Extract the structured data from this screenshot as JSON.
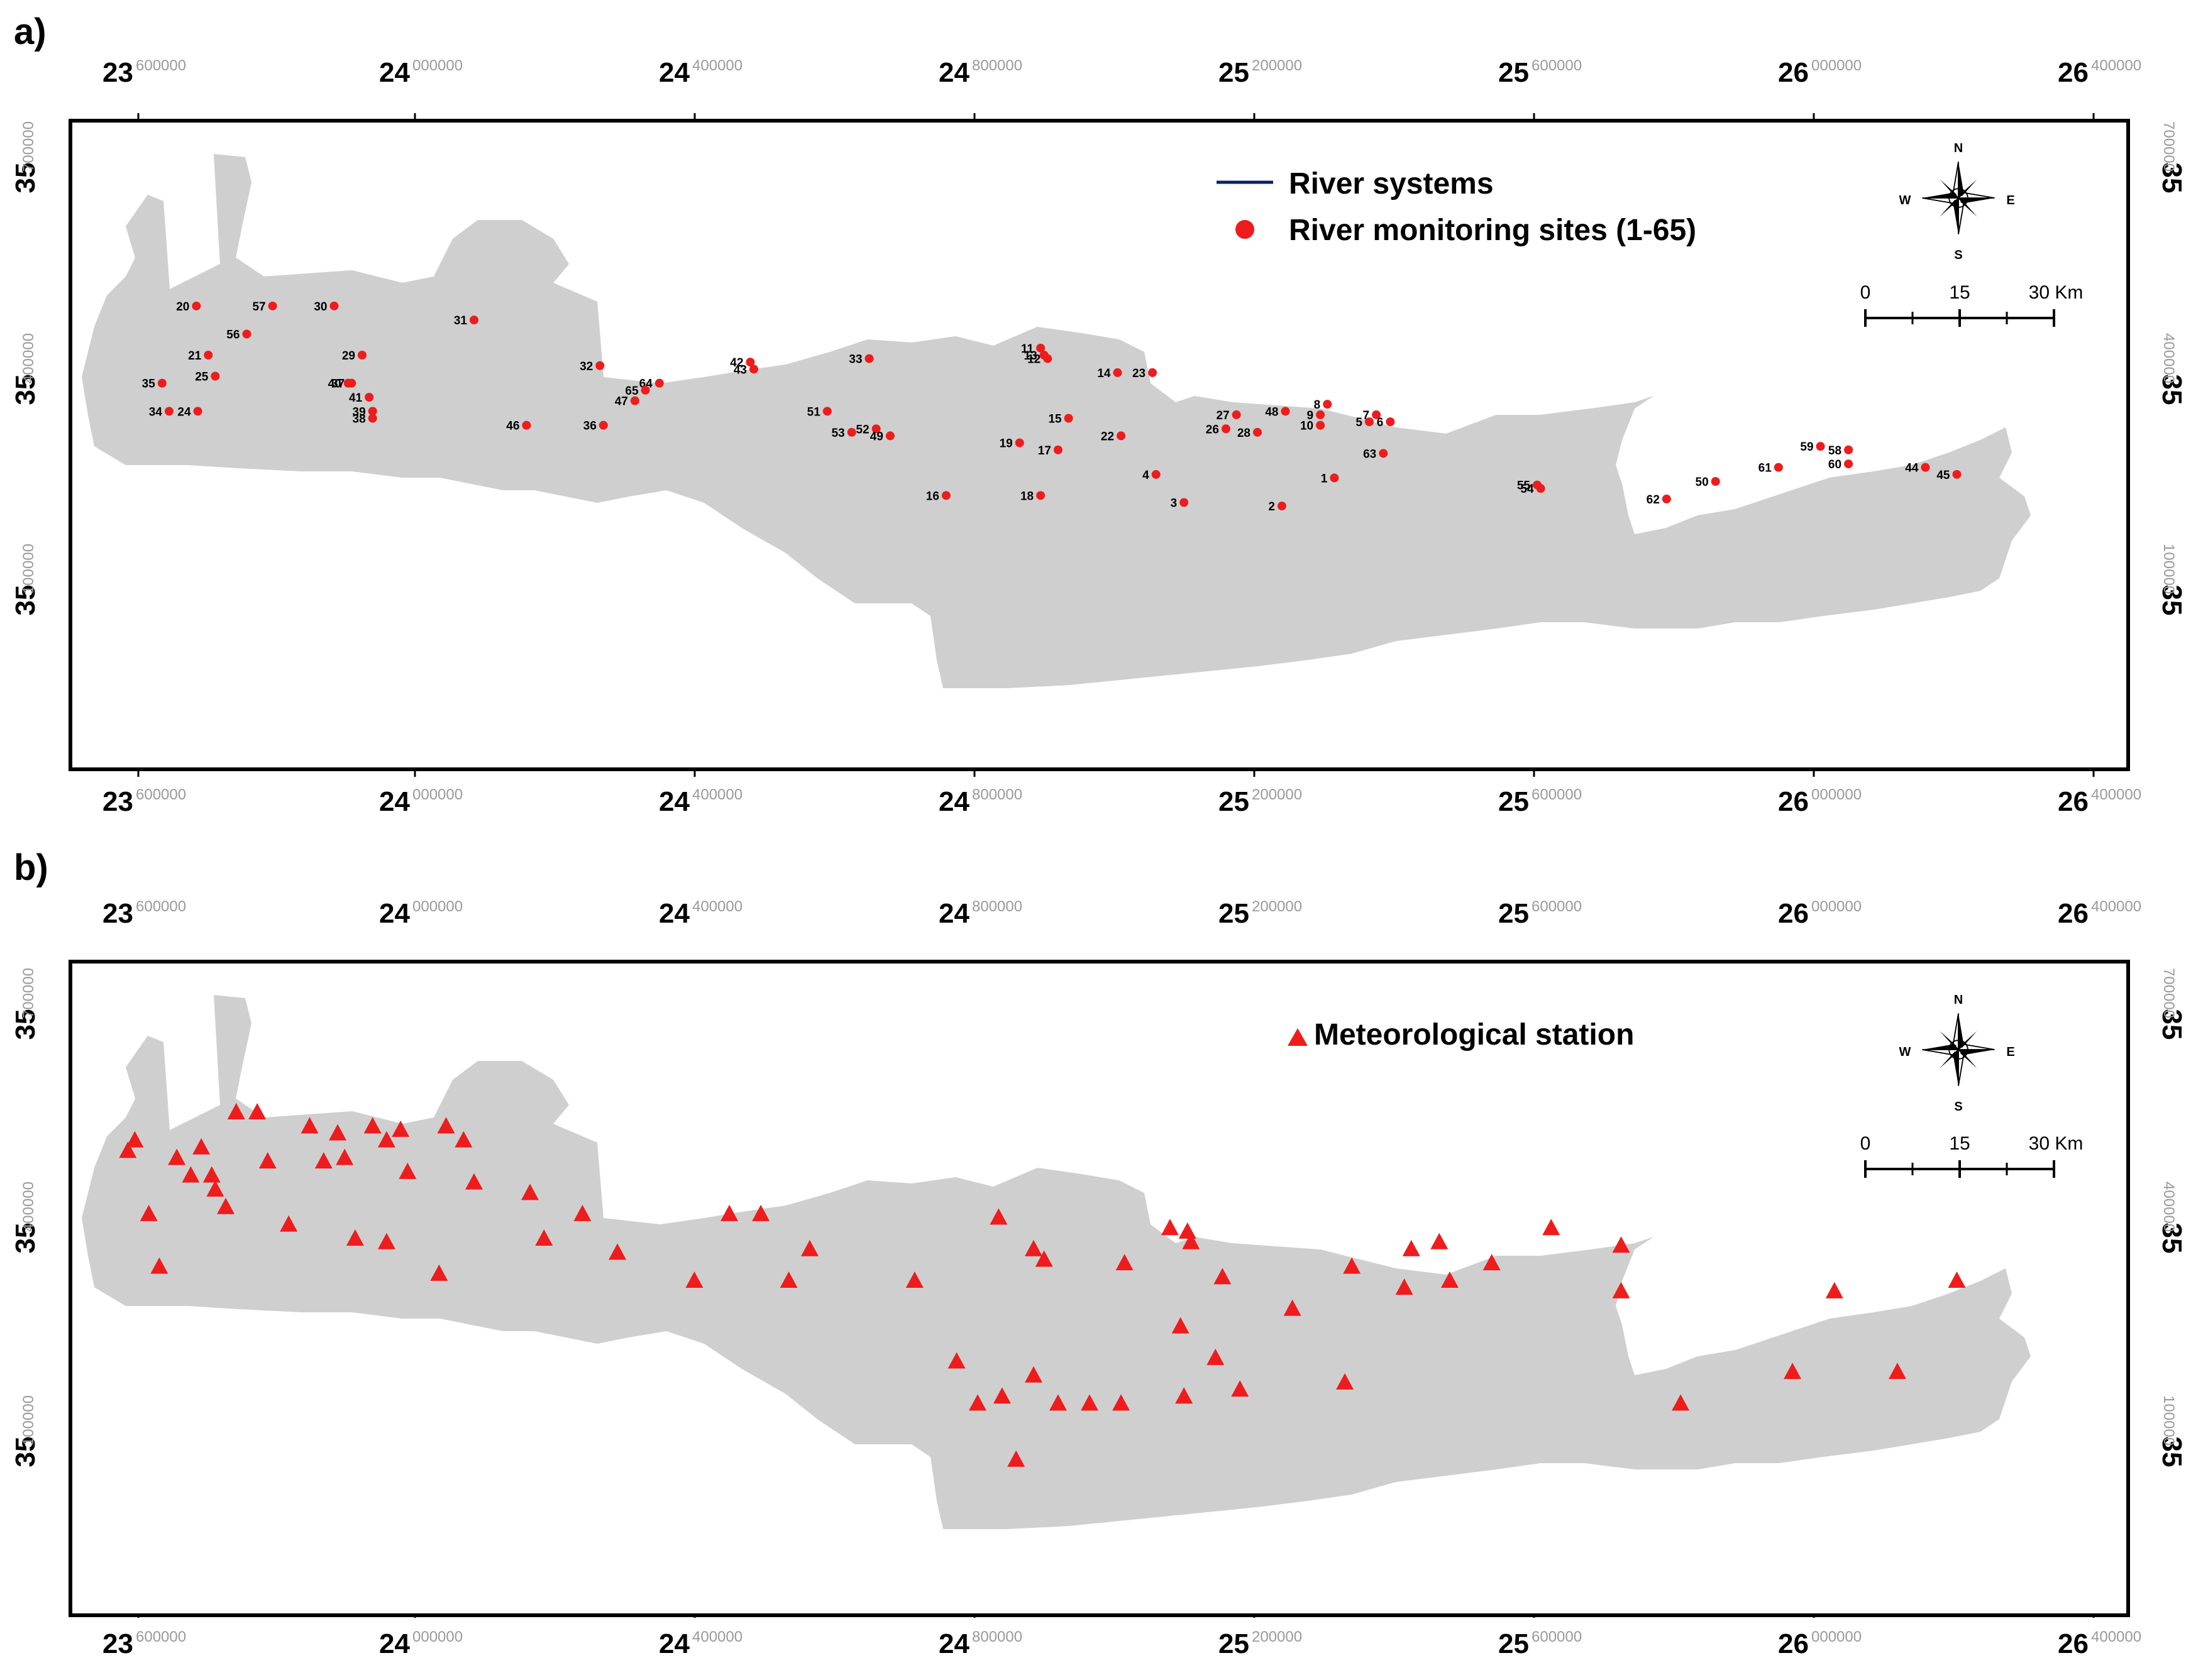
{
  "panels": [
    {
      "id": "a",
      "label": "a)",
      "axes": {
        "top_ticks": [
          {
            "major": "23",
            "minor": "600000"
          },
          {
            "major": "24",
            "minor": "000000"
          },
          {
            "major": "24",
            "minor": "400000"
          },
          {
            "major": "24",
            "minor": "800000"
          },
          {
            "major": "25",
            "minor": "200000"
          },
          {
            "major": "25",
            "minor": "600000"
          },
          {
            "major": "26",
            "minor": "000000"
          },
          {
            "major": "26",
            "minor": "400000"
          }
        ],
        "side_ticks": [
          {
            "major": "35",
            "minor": "700000"
          },
          {
            "major": "35",
            "minor": "400000"
          },
          {
            "major": "35",
            "minor": "100000"
          }
        ]
      },
      "legend": [
        {
          "symbol": "line",
          "color": "#0a1f6b",
          "label": "River systems"
        },
        {
          "symbol": "circle",
          "color": "#ee1c1c",
          "label": "River monitoring sites (1-65)"
        }
      ],
      "compass": {
        "n": "N",
        "s": "S",
        "e": "E",
        "w": "W"
      },
      "scale": {
        "labels": [
          "0",
          "15",
          "30 Km"
        ]
      },
      "sites": [
        {
          "id": "20",
          "lon": 23.683,
          "lat": 35.47
        },
        {
          "id": "57",
          "lon": 23.792,
          "lat": 35.47
        },
        {
          "id": "30",
          "lon": 23.88,
          "lat": 35.47
        },
        {
          "id": "31",
          "lon": 24.08,
          "lat": 35.45
        },
        {
          "id": "56",
          "lon": 23.755,
          "lat": 35.43
        },
        {
          "id": "21",
          "lon": 23.7,
          "lat": 35.4
        },
        {
          "id": "29",
          "lon": 23.92,
          "lat": 35.4
        },
        {
          "id": "25",
          "lon": 23.71,
          "lat": 35.37
        },
        {
          "id": "35",
          "lon": 23.634,
          "lat": 35.36
        },
        {
          "id": "37",
          "lon": 23.905,
          "lat": 35.36
        },
        {
          "id": "40",
          "lon": 23.9,
          "lat": 35.36
        },
        {
          "id": "41",
          "lon": 23.93,
          "lat": 35.34
        },
        {
          "id": "34",
          "lon": 23.644,
          "lat": 35.32
        },
        {
          "id": "24",
          "lon": 23.685,
          "lat": 35.32
        },
        {
          "id": "39",
          "lon": 23.935,
          "lat": 35.32
        },
        {
          "id": "38",
          "lon": 23.935,
          "lat": 35.31
        },
        {
          "id": "46",
          "lon": 24.155,
          "lat": 35.3
        },
        {
          "id": "36",
          "lon": 24.265,
          "lat": 35.3
        },
        {
          "id": "32",
          "lon": 24.26,
          "lat": 35.385
        },
        {
          "id": "42",
          "lon": 24.475,
          "lat": 35.39
        },
        {
          "id": "43",
          "lon": 24.48,
          "lat": 35.38
        },
        {
          "id": "33",
          "lon": 24.645,
          "lat": 35.395
        },
        {
          "id": "64",
          "lon": 24.345,
          "lat": 35.36
        },
        {
          "id": "65",
          "lon": 24.325,
          "lat": 35.35
        },
        {
          "id": "47",
          "lon": 24.31,
          "lat": 35.335
        },
        {
          "id": "51",
          "lon": 24.585,
          "lat": 35.32
        },
        {
          "id": "52",
          "lon": 24.655,
          "lat": 35.295
        },
        {
          "id": "53",
          "lon": 24.62,
          "lat": 35.29
        },
        {
          "id": "49",
          "lon": 24.675,
          "lat": 35.285
        },
        {
          "id": "11",
          "lon": 24.89,
          "lat": 35.41
        },
        {
          "id": "13",
          "lon": 24.895,
          "lat": 35.4
        },
        {
          "id": "12",
          "lon": 24.9,
          "lat": 35.395
        },
        {
          "id": "14",
          "lon": 25.0,
          "lat": 35.375
        },
        {
          "id": "23",
          "lon": 25.05,
          "lat": 35.375
        },
        {
          "id": "15",
          "lon": 24.93,
          "lat": 35.31
        },
        {
          "id": "19",
          "lon": 24.86,
          "lat": 35.275
        },
        {
          "id": "17",
          "lon": 24.915,
          "lat": 35.265
        },
        {
          "id": "22",
          "lon": 25.005,
          "lat": 35.285
        },
        {
          "id": "16",
          "lon": 24.755,
          "lat": 35.2
        },
        {
          "id": "18",
          "lon": 24.89,
          "lat": 35.2
        },
        {
          "id": "4",
          "lon": 25.055,
          "lat": 35.23
        },
        {
          "id": "3",
          "lon": 25.095,
          "lat": 35.19
        },
        {
          "id": "27",
          "lon": 25.17,
          "lat": 35.315
        },
        {
          "id": "48",
          "lon": 25.24,
          "lat": 35.32
        },
        {
          "id": "26",
          "lon": 25.155,
          "lat": 35.295
        },
        {
          "id": "28",
          "lon": 25.2,
          "lat": 35.29
        },
        {
          "id": "8",
          "lon": 25.3,
          "lat": 35.33
        },
        {
          "id": "9",
          "lon": 25.29,
          "lat": 35.315
        },
        {
          "id": "10",
          "lon": 25.29,
          "lat": 35.3
        },
        {
          "id": "7",
          "lon": 25.37,
          "lat": 35.315
        },
        {
          "id": "5",
          "lon": 25.36,
          "lat": 35.305
        },
        {
          "id": "6",
          "lon": 25.39,
          "lat": 35.305
        },
        {
          "id": "63",
          "lon": 25.38,
          "lat": 35.26
        },
        {
          "id": "1",
          "lon": 25.31,
          "lat": 35.225
        },
        {
          "id": "2",
          "lon": 25.235,
          "lat": 35.185
        },
        {
          "id": "55",
          "lon": 25.6,
          "lat": 35.215
        },
        {
          "id": "54",
          "lon": 25.605,
          "lat": 35.21
        },
        {
          "id": "62",
          "lon": 25.785,
          "lat": 35.195
        },
        {
          "id": "50",
          "lon": 25.855,
          "lat": 35.22
        },
        {
          "id": "61",
          "lon": 25.945,
          "lat": 35.24
        },
        {
          "id": "59",
          "lon": 26.005,
          "lat": 35.27
        },
        {
          "id": "58",
          "lon": 26.045,
          "lat": 35.265
        },
        {
          "id": "60",
          "lon": 26.045,
          "lat": 35.245
        },
        {
          "id": "44",
          "lon": 26.155,
          "lat": 35.24
        },
        {
          "id": "45",
          "lon": 26.2,
          "lat": 35.23
        }
      ]
    },
    {
      "id": "b",
      "label": "b)",
      "axes": {
        "top_ticks": [
          {
            "major": "23",
            "minor": "600000"
          },
          {
            "major": "24",
            "minor": "000000"
          },
          {
            "major": "24",
            "minor": "400000"
          },
          {
            "major": "24",
            "minor": "800000"
          },
          {
            "major": "25",
            "minor": "200000"
          },
          {
            "major": "25",
            "minor": "600000"
          },
          {
            "major": "26",
            "minor": "000000"
          },
          {
            "major": "26",
            "minor": "400000"
          }
        ],
        "side_ticks": [
          {
            "major": "35",
            "minor": "700000"
          },
          {
            "major": "35",
            "minor": "400000"
          },
          {
            "major": "35",
            "minor": "100000"
          }
        ]
      },
      "legend": [
        {
          "symbol": "triangle",
          "color": "#ee1c1c",
          "label": "Meteorological station"
        }
      ],
      "compass": {
        "n": "N",
        "s": "S",
        "e": "E",
        "w": "W"
      },
      "scale": {
        "labels": [
          "0",
          "15",
          "30 Km"
        ]
      },
      "stations": [
        {
          "lon": 23.585,
          "lat": 35.465
        },
        {
          "lon": 23.595,
          "lat": 35.48
        },
        {
          "lon": 23.69,
          "lat": 35.47
        },
        {
          "lon": 23.74,
          "lat": 35.52
        },
        {
          "lon": 23.77,
          "lat": 35.52
        },
        {
          "lon": 23.845,
          "lat": 35.5
        },
        {
          "lon": 23.885,
          "lat": 35.49
        },
        {
          "lon": 23.935,
          "lat": 35.5
        },
        {
          "lon": 23.975,
          "lat": 35.495
        },
        {
          "lon": 23.655,
          "lat": 35.455
        },
        {
          "lon": 23.675,
          "lat": 35.43
        },
        {
          "lon": 23.705,
          "lat": 35.43
        },
        {
          "lon": 23.71,
          "lat": 35.41
        },
        {
          "lon": 23.785,
          "lat": 35.45
        },
        {
          "lon": 23.865,
          "lat": 35.45
        },
        {
          "lon": 23.895,
          "lat": 35.455
        },
        {
          "lon": 23.955,
          "lat": 35.48
        },
        {
          "lon": 23.985,
          "lat": 35.435
        },
        {
          "lon": 24.04,
          "lat": 35.5
        },
        {
          "lon": 24.065,
          "lat": 35.48
        },
        {
          "lon": 24.08,
          "lat": 35.42
        },
        {
          "lon": 24.16,
          "lat": 35.405
        },
        {
          "lon": 23.615,
          "lat": 35.375
        },
        {
          "lon": 23.725,
          "lat": 35.385
        },
        {
          "lon": 23.815,
          "lat": 35.36
        },
        {
          "lon": 23.91,
          "lat": 35.34
        },
        {
          "lon": 23.955,
          "lat": 35.335
        },
        {
          "lon": 23.63,
          "lat": 35.3
        },
        {
          "lon": 24.03,
          "lat": 35.29
        },
        {
          "lon": 24.18,
          "lat": 35.34
        },
        {
          "lon": 24.235,
          "lat": 35.375
        },
        {
          "lon": 24.285,
          "lat": 35.32
        },
        {
          "lon": 24.395,
          "lat": 35.28
        },
        {
          "lon": 24.445,
          "lat": 35.375
        },
        {
          "lon": 24.49,
          "lat": 35.375
        },
        {
          "lon": 24.56,
          "lat": 35.325
        },
        {
          "lon": 24.53,
          "lat": 35.28
        },
        {
          "lon": 24.71,
          "lat": 35.28
        },
        {
          "lon": 24.83,
          "lat": 35.37
        },
        {
          "lon": 24.88,
          "lat": 35.325
        },
        {
          "lon": 24.895,
          "lat": 35.31
        },
        {
          "lon": 25.01,
          "lat": 35.305
        },
        {
          "lon": 25.075,
          "lat": 35.355
        },
        {
          "lon": 25.1,
          "lat": 35.35
        },
        {
          "lon": 25.105,
          "lat": 35.335
        },
        {
          "lon": 25.15,
          "lat": 35.285
        },
        {
          "lon": 25.25,
          "lat": 35.24
        },
        {
          "lon": 25.335,
          "lat": 35.3
        },
        {
          "lon": 25.42,
          "lat": 35.325
        },
        {
          "lon": 25.46,
          "lat": 35.335
        },
        {
          "lon": 25.41,
          "lat": 35.27
        },
        {
          "lon": 25.475,
          "lat": 35.28
        },
        {
          "lon": 25.535,
          "lat": 35.305
        },
        {
          "lon": 25.62,
          "lat": 35.355
        },
        {
          "lon": 25.72,
          "lat": 35.33
        },
        {
          "lon": 25.72,
          "lat": 35.265
        },
        {
          "lon": 25.09,
          "lat": 35.215
        },
        {
          "lon": 25.14,
          "lat": 35.17
        },
        {
          "lon": 25.005,
          "lat": 35.105
        },
        {
          "lon": 25.095,
          "lat": 35.115
        },
        {
          "lon": 25.175,
          "lat": 35.125
        },
        {
          "lon": 24.77,
          "lat": 35.165
        },
        {
          "lon": 24.8,
          "lat": 35.105
        },
        {
          "lon": 24.835,
          "lat": 35.115
        },
        {
          "lon": 24.855,
          "lat": 35.025
        },
        {
          "lon": 24.88,
          "lat": 35.145
        },
        {
          "lon": 24.915,
          "lat": 35.105
        },
        {
          "lon": 24.96,
          "lat": 35.105
        },
        {
          "lon": 25.325,
          "lat": 35.135
        },
        {
          "lon": 25.805,
          "lat": 35.105
        },
        {
          "lon": 25.965,
          "lat": 35.15
        },
        {
          "lon": 26.025,
          "lat": 35.265
        },
        {
          "lon": 26.115,
          "lat": 35.15
        },
        {
          "lon": 26.2,
          "lat": 35.28
        }
      ]
    }
  ]
}
